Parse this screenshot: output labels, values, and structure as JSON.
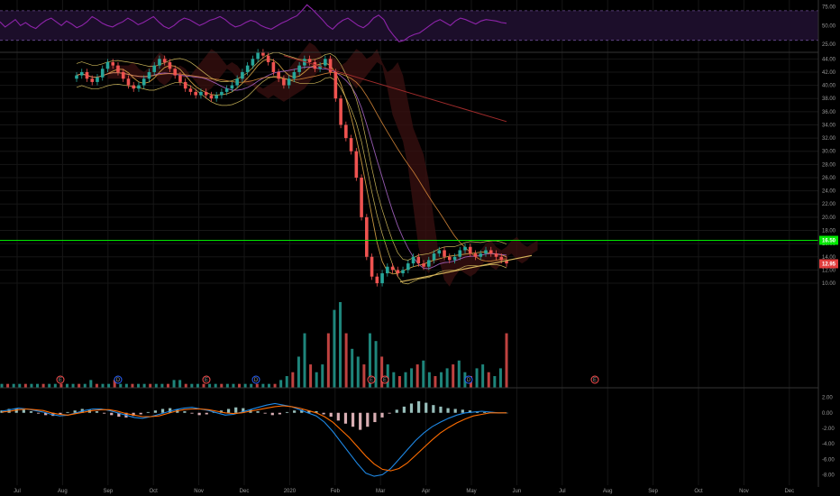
{
  "colors": {
    "background": "#000000",
    "grid": "#161616",
    "axis_text": "#9a9a9a",
    "up": "#26a69a",
    "down": "#ef5350",
    "rsi_line": "#8e24aa",
    "rsi_band": "#1c0e2a",
    "rsi_level": "#6a4c93",
    "horizontal_level": "#00e600",
    "trendline": "#d4b25a",
    "price_tag": "#e03c3c",
    "macd_line": "#1e88e5",
    "signal_line": "#ff6d00",
    "cloud": "#3a1010",
    "event_marker": "#ff5252",
    "dividend_marker": "#2962ff"
  },
  "chart_data": [
    {
      "type": "line",
      "pane": "rsi",
      "yticks": [
        "75.00",
        "50.00",
        "25.00"
      ],
      "ylim": [
        15,
        82
      ],
      "levels": [
        70,
        30
      ],
      "series": [
        {
          "values": [
            55,
            48,
            53,
            58,
            50,
            54,
            49,
            46,
            52,
            57,
            60,
            55,
            50,
            56,
            52,
            47,
            50,
            55,
            62,
            58,
            53,
            50,
            48,
            52,
            55,
            60,
            56,
            51,
            54,
            58,
            62,
            55,
            49,
            46,
            50,
            56,
            60,
            58,
            54,
            50,
            53,
            57,
            59,
            62,
            58,
            52,
            48,
            50,
            54,
            57,
            55,
            50,
            47,
            45,
            49,
            53,
            56,
            60,
            63,
            70,
            78,
            72,
            65,
            58,
            50,
            45,
            52,
            57,
            60,
            55,
            50,
            47,
            52,
            60,
            64,
            58,
            45,
            36,
            28,
            30,
            35,
            38,
            40,
            45,
            50,
            55,
            58,
            54,
            50,
            56,
            60,
            58,
            55,
            52,
            56,
            58,
            57,
            56,
            54,
            53
          ]
        }
      ]
    },
    {
      "type": "line",
      "pane": "price",
      "yticks": [
        "44.00",
        "42.00",
        "40.00",
        "38.00",
        "36.00",
        "34.00",
        "32.00",
        "30.00",
        "28.00",
        "26.00",
        "24.00",
        "22.00",
        "20.00",
        "18.00",
        "16.00",
        "14.00",
        "12.00",
        "10.00"
      ],
      "ylim": [
        8.5,
        45
      ],
      "close": [
        41.5,
        42.0,
        41.0,
        40.5,
        41.2,
        42.5,
        43.5,
        43.0,
        42.0,
        41.0,
        40.0,
        39.5,
        40.0,
        41.0,
        42.0,
        43.0,
        44.0,
        43.5,
        42.5,
        41.5,
        40.5,
        39.5,
        39.0,
        38.5,
        39.0,
        38.5,
        38.0,
        38.5,
        39.0,
        39.5,
        40.0,
        41.0,
        42.0,
        43.0,
        44.0,
        45.0,
        44.5,
        43.5,
        42.0,
        41.0,
        40.0,
        41.0,
        42.0,
        43.0,
        44.0,
        43.5,
        42.5,
        43.0,
        44.0,
        42.0,
        38.0,
        34.0,
        32.0,
        30.0,
        26.0,
        20.0,
        14.0,
        11.0,
        10.0,
        11.5,
        12.5,
        12.0,
        11.5,
        12.0,
        13.0,
        14.0,
        13.0,
        12.5,
        13.5,
        14.5,
        15.0,
        14.0,
        13.5,
        14.0,
        15.0,
        15.5,
        14.5,
        14.0,
        14.5,
        15.0,
        14.5,
        14.0,
        13.5,
        13.0
      ],
      "horizontal_level": 16.5,
      "level_label": "16.50",
      "last_price": 12.95,
      "last_price_label": "12.95",
      "trendline": {
        "from": 10.2,
        "to": 14.2
      }
    },
    {
      "type": "bar",
      "pane": "volume",
      "values": [
        1,
        1,
        1,
        1,
        1,
        1,
        1,
        1,
        1,
        1,
        1,
        1,
        1,
        1,
        1,
        2,
        1,
        1,
        1,
        2,
        1,
        1,
        1,
        1,
        1,
        1,
        1,
        1,
        1,
        2,
        2,
        1,
        1,
        1,
        1,
        1,
        1,
        1,
        1,
        1,
        1,
        1,
        1,
        1,
        1,
        1,
        1,
        2,
        3,
        4,
        8,
        14,
        6,
        4,
        6,
        14,
        20,
        22,
        14,
        10,
        8,
        6,
        14,
        12,
        8,
        6,
        4,
        3,
        4,
        5,
        6,
        7,
        4,
        3,
        4,
        5,
        6,
        7,
        4,
        3,
        5,
        6,
        4,
        3,
        5,
        14
      ],
      "event_markers": [
        "E",
        "D",
        "E",
        "D",
        "E",
        "E",
        "D",
        "E",
        "E"
      ]
    },
    {
      "type": "bar",
      "pane": "macd",
      "yticks": [
        "2.00",
        "0.00",
        "-2.00",
        "-4.00",
        "-6.00",
        "-8.00"
      ],
      "ylim": [
        -9,
        3
      ],
      "histogram": [
        0.3,
        0.5,
        0.6,
        0.4,
        0.2,
        -0.1,
        -0.3,
        -0.4,
        -0.2,
        0.1,
        0.3,
        0.5,
        0.4,
        0.2,
        -0.1,
        -0.3,
        -0.5,
        -0.6,
        -0.4,
        -0.2,
        0.1,
        0.3,
        0.5,
        0.6,
        0.4,
        0.2,
        -0.1,
        -0.3,
        -0.2,
        0.1,
        0.3,
        0.5,
        0.7,
        0.6,
        0.4,
        0.2,
        -0.1,
        -0.3,
        -0.2,
        0.1,
        0.3,
        0.4,
        0.3,
        0.2,
        -0.2,
        -0.5,
        -1.0,
        -1.4,
        -1.8,
        -2.2,
        -1.8,
        -1.2,
        -0.6,
        -0.1,
        0.4,
        0.8,
        1.2,
        1.5,
        1.3,
        1.0,
        0.8,
        0.6,
        0.5,
        0.4,
        0.3,
        0.2,
        0.1,
        0.1,
        0.0,
        0.0
      ],
      "macd": [
        0.2,
        0.4,
        0.6,
        0.5,
        0.3,
        0.1,
        -0.2,
        -0.4,
        -0.3,
        0.0,
        0.3,
        0.5,
        0.5,
        0.3,
        0.0,
        -0.3,
        -0.6,
        -0.7,
        -0.5,
        -0.2,
        0.1,
        0.4,
        0.6,
        0.7,
        0.5,
        0.3,
        0.0,
        -0.3,
        -0.2,
        0.1,
        0.4,
        0.7,
        1.0,
        1.2,
        1.0,
        0.8,
        0.4,
        0.0,
        -0.4,
        -1.2,
        -2.4,
        -3.8,
        -5.2,
        -6.6,
        -7.8,
        -8.2,
        -8.0,
        -7.2,
        -6.0,
        -4.8,
        -3.6,
        -2.6,
        -1.8,
        -1.2,
        -0.7,
        -0.3,
        0.0,
        0.1,
        0.2,
        0.1,
        0.0,
        0.0
      ],
      "signal": [
        0.1,
        0.2,
        0.4,
        0.5,
        0.4,
        0.3,
        0.0,
        -0.2,
        -0.3,
        -0.1,
        0.1,
        0.3,
        0.4,
        0.4,
        0.2,
        -0.1,
        -0.3,
        -0.5,
        -0.5,
        -0.4,
        -0.1,
        0.2,
        0.4,
        0.5,
        0.5,
        0.4,
        0.2,
        0.0,
        -0.1,
        0.0,
        0.2,
        0.4,
        0.6,
        0.8,
        0.9,
        0.8,
        0.6,
        0.3,
        0.0,
        -0.5,
        -1.2,
        -2.2,
        -3.2,
        -4.4,
        -5.6,
        -6.6,
        -7.3,
        -7.5,
        -7.2,
        -6.5,
        -5.5,
        -4.5,
        -3.5,
        -2.6,
        -1.9,
        -1.3,
        -0.8,
        -0.4,
        -0.2,
        0.0,
        0.0,
        0.0
      ]
    }
  ],
  "x_axis": {
    "labels": [
      "Jul",
      "Aug",
      "Sep",
      "Oct",
      "Nov",
      "Dec",
      "2020",
      "Feb",
      "Mar",
      "Apr",
      "May",
      "Jun",
      "Jul",
      "Aug",
      "Sep",
      "Oct",
      "Nov",
      "Dec"
    ]
  }
}
